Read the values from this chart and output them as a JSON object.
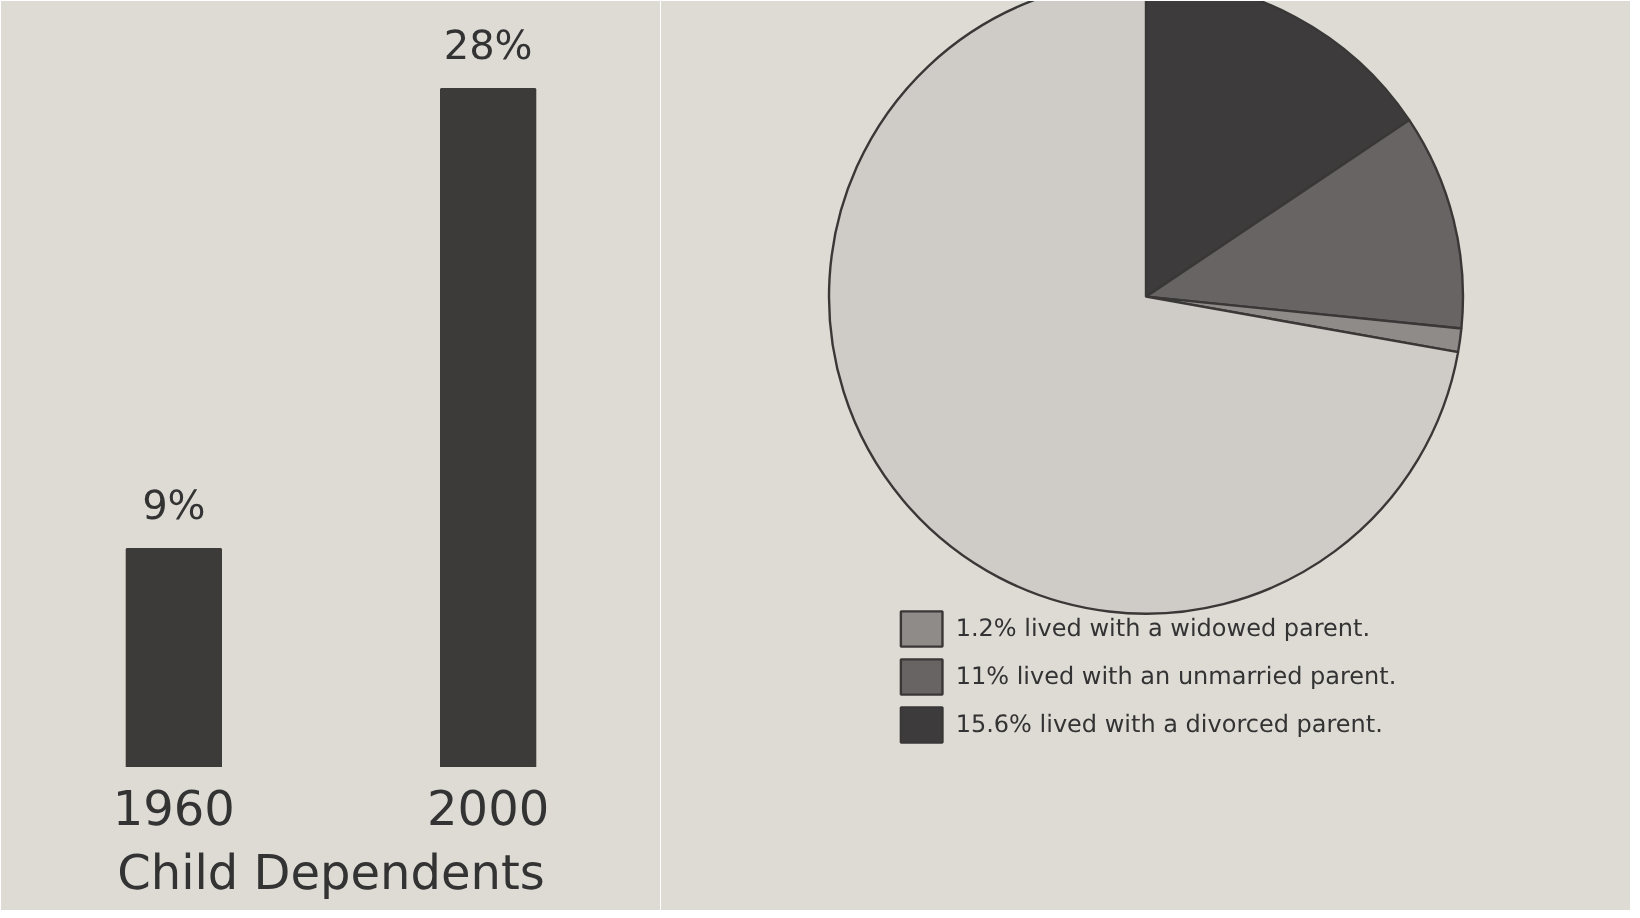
{
  "chart_data": [
    {
      "type": "bar",
      "title": "Child Dependents",
      "categories": [
        "1960",
        "2000"
      ],
      "values": [
        9,
        28
      ],
      "value_labels": [
        "9%",
        "28%"
      ],
      "color": "#3d3a3a",
      "grid": false
    },
    {
      "type": "pie",
      "categories": [
        "15.6% lived with a divorced parent.",
        "11% lived with an unmarried parent.",
        "1.2% lived with a widowed parent.",
        null
      ],
      "values": [
        15.6,
        11,
        1.2,
        72.2
      ],
      "colors": [
        "#3e3b3c",
        "#676463",
        "#8e8b89",
        "#cfccc7"
      ],
      "legend": "bottom"
    }
  ]
}
